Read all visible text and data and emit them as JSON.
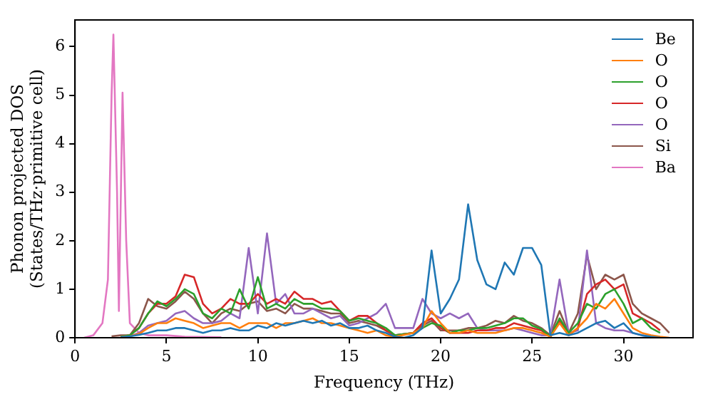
{
  "chart_data": {
    "type": "line",
    "xlabel": "Frequency (THz)",
    "ylabel": "Phonon projected DOS\n(States/THz·primitive cell)",
    "x": [
      2,
      2.5,
      3,
      3.5,
      4,
      4.5,
      5,
      5.5,
      6,
      6.5,
      7,
      7.5,
      8,
      8.5,
      9,
      9.5,
      10,
      10.5,
      11,
      11.5,
      12,
      12.5,
      13,
      13.5,
      14,
      14.5,
      15,
      15.5,
      16,
      16.5,
      17,
      17.5,
      18,
      18.5,
      19,
      19.5,
      20,
      20.5,
      21,
      21.5,
      22,
      22.5,
      23,
      23.5,
      24,
      24.5,
      25,
      25.5,
      26,
      26.5,
      27,
      27.5,
      28,
      28.5,
      29,
      29.5,
      30,
      30.5,
      31,
      31.5,
      32,
      32.5
    ],
    "series": [
      {
        "name": "Be",
        "color": "#1f77b4",
        "values": [
          null,
          0.01,
          0.03,
          0.06,
          0.1,
          0.15,
          0.15,
          0.2,
          0.2,
          0.15,
          0.1,
          0.15,
          0.15,
          0.2,
          0.15,
          0.15,
          0.25,
          0.2,
          0.3,
          0.25,
          0.3,
          0.35,
          0.3,
          0.35,
          0.25,
          0.3,
          0.2,
          0.2,
          0.25,
          0.15,
          0.1,
          0.02,
          0,
          0.05,
          0.2,
          1.8,
          0.5,
          0.8,
          1.2,
          2.75,
          1.6,
          1.1,
          1.0,
          1.55,
          1.3,
          1.85,
          1.85,
          1.5,
          0.05,
          0.1,
          0.05,
          0.1,
          0.2,
          0.3,
          0.35,
          0.2,
          0.3,
          0.1,
          0.05,
          0.02,
          0,
          null
        ]
      },
      {
        "name": "O",
        "color": "#ff7f0e",
        "values": [
          null,
          0.01,
          0.03,
          0.08,
          0.2,
          0.3,
          0.3,
          0.4,
          0.35,
          0.3,
          0.2,
          0.25,
          0.3,
          0.3,
          0.2,
          0.3,
          0.3,
          0.3,
          0.2,
          0.3,
          0.3,
          0.35,
          0.4,
          0.3,
          0.3,
          0.25,
          0.2,
          0.15,
          0.1,
          0.15,
          0.05,
          0.02,
          null,
          0.1,
          0.2,
          0.55,
          0.3,
          0.1,
          0.1,
          0.15,
          0.1,
          0.1,
          0.1,
          0.15,
          0.2,
          0.2,
          0.15,
          0.1,
          0.02,
          0.3,
          0.05,
          0.2,
          0.4,
          0.7,
          0.6,
          0.8,
          0.5,
          0.2,
          0.1,
          0.05,
          0.02,
          0
        ]
      },
      {
        "name": "O",
        "color": "#2ca02c",
        "values": [
          null,
          0.02,
          0.05,
          0.2,
          0.5,
          0.75,
          0.65,
          0.8,
          1.0,
          0.9,
          0.5,
          0.4,
          0.6,
          0.5,
          1.0,
          0.6,
          1.25,
          0.6,
          0.7,
          0.6,
          0.8,
          0.7,
          0.7,
          0.6,
          0.6,
          0.55,
          0.35,
          0.4,
          0.35,
          0.3,
          0.2,
          0.05,
          null,
          0.1,
          0.2,
          0.3,
          0.25,
          0.1,
          0.15,
          0.15,
          0.2,
          0.2,
          0.25,
          0.3,
          0.4,
          0.4,
          0.25,
          0.18,
          0.02,
          0.4,
          0.1,
          0.3,
          0.7,
          0.6,
          0.9,
          1.0,
          0.7,
          0.3,
          0.4,
          0.2,
          0.1,
          null
        ]
      },
      {
        "name": "O",
        "color": "#d62728",
        "values": [
          null,
          0.02,
          0.05,
          0.2,
          0.5,
          0.7,
          0.7,
          0.85,
          1.3,
          1.25,
          0.7,
          0.5,
          0.6,
          0.8,
          0.7,
          0.7,
          0.9,
          0.7,
          0.8,
          0.7,
          0.95,
          0.8,
          0.8,
          0.7,
          0.75,
          0.55,
          0.35,
          0.45,
          0.45,
          0.3,
          0.15,
          0.05,
          null,
          0.1,
          0.3,
          0.4,
          0.2,
          0.1,
          0.1,
          0.1,
          0.15,
          0.15,
          0.2,
          0.2,
          0.3,
          0.25,
          0.2,
          0.15,
          0.02,
          0.35,
          0.05,
          0.2,
          0.9,
          1.1,
          1.2,
          1.0,
          1.1,
          0.5,
          0.4,
          0.3,
          0.15,
          null
        ]
      },
      {
        "name": "O",
        "color": "#9467bd",
        "values": [
          null,
          0.01,
          0.03,
          0.1,
          0.25,
          0.3,
          0.35,
          0.5,
          0.55,
          0.4,
          0.3,
          0.3,
          0.35,
          0.5,
          0.4,
          1.85,
          0.5,
          2.15,
          0.7,
          0.9,
          0.5,
          0.5,
          0.6,
          0.5,
          0.4,
          0.45,
          0.25,
          0.3,
          0.4,
          0.5,
          0.7,
          0.2,
          null,
          0.2,
          0.8,
          0.5,
          0.4,
          0.5,
          0.4,
          0.5,
          0.2,
          0.15,
          0.15,
          0.15,
          0.2,
          0.15,
          0.1,
          0.05,
          0.05,
          1.2,
          0.1,
          0.15,
          1.8,
          0.3,
          0.2,
          0.15,
          0.15,
          0.1,
          0.05,
          0.02,
          null,
          null
        ]
      },
      {
        "name": "Si",
        "color": "#8c564b",
        "values": [
          0.03,
          0.05,
          0.05,
          0.3,
          0.8,
          0.65,
          0.6,
          0.75,
          0.95,
          0.8,
          0.5,
          0.3,
          0.5,
          0.6,
          0.55,
          0.7,
          0.75,
          0.55,
          0.6,
          0.5,
          0.7,
          0.6,
          0.6,
          0.55,
          0.5,
          0.5,
          0.3,
          0.35,
          0.3,
          0.25,
          0.15,
          0.05,
          null,
          0.1,
          0.25,
          0.35,
          0.15,
          0.15,
          0.15,
          0.2,
          0.2,
          0.25,
          0.35,
          0.3,
          0.45,
          0.35,
          0.3,
          0.2,
          0.05,
          0.55,
          0.1,
          0.5,
          1.7,
          1.0,
          1.3,
          1.2,
          1.3,
          0.7,
          0.5,
          0.4,
          0.3,
          0.1
        ]
      },
      {
        "name": "Ba",
        "color": "#e377c2",
        "x": [
          0.5,
          1,
          1.5,
          1.8,
          2.0,
          2.1,
          2.3,
          2.4,
          2.6,
          2.8,
          3.0,
          3.5,
          4,
          5,
          6,
          8
        ],
        "values": [
          0,
          0.05,
          0.3,
          1.2,
          5.0,
          6.25,
          3.0,
          0.55,
          5.05,
          2.0,
          0.3,
          0.1,
          0.05,
          0.05,
          0.02,
          0.01
        ]
      }
    ],
    "xlim": [
      0,
      33.8
    ],
    "ylim": [
      0,
      6.55
    ],
    "xticks": [
      0,
      5,
      10,
      15,
      20,
      25,
      30
    ],
    "yticks": [
      0,
      1,
      2,
      3,
      4,
      5,
      6
    ],
    "legend": "top right",
    "grid": false,
    "marker": "none",
    "line_style": "solid"
  }
}
